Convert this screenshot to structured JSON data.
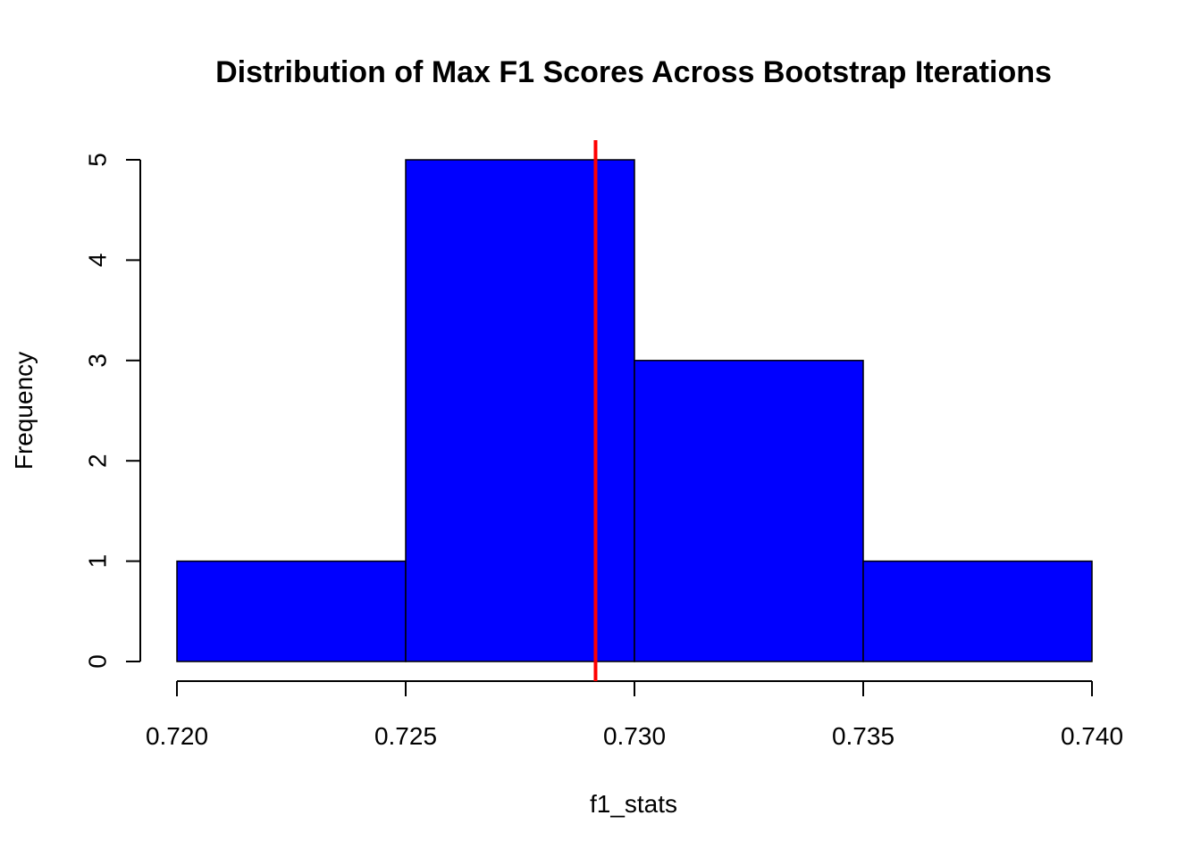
{
  "chart_data": {
    "type": "bar",
    "subtype": "histogram",
    "title": "Distribution of Max F1 Scores Across Bootstrap Iterations",
    "xlabel": "f1_stats",
    "ylabel": "Frequency",
    "bins": [
      {
        "start": 0.72,
        "end": 0.725,
        "count": 1
      },
      {
        "start": 0.725,
        "end": 0.73,
        "count": 5
      },
      {
        "start": 0.73,
        "end": 0.735,
        "count": 3
      },
      {
        "start": 0.735,
        "end": 0.74,
        "count": 1
      }
    ],
    "xlim": [
      0.72,
      0.74
    ],
    "ylim": [
      0,
      5
    ],
    "x_ticks": [
      {
        "value": 0.72,
        "label": "0.720"
      },
      {
        "value": 0.725,
        "label": "0.725"
      },
      {
        "value": 0.73,
        "label": "0.730"
      },
      {
        "value": 0.735,
        "label": "0.735"
      },
      {
        "value": 0.74,
        "label": "0.740"
      }
    ],
    "y_ticks": [
      {
        "value": 0,
        "label": "0"
      },
      {
        "value": 1,
        "label": "1"
      },
      {
        "value": 2,
        "label": "2"
      },
      {
        "value": 3,
        "label": "3"
      },
      {
        "value": 4,
        "label": "4"
      },
      {
        "value": 5,
        "label": "5"
      }
    ],
    "reference_line": {
      "x": 0.72915,
      "color": "#ff0000"
    },
    "bar_color": "#0000ff",
    "bar_edge_color": "#000000",
    "grid": false,
    "legend": "none"
  }
}
